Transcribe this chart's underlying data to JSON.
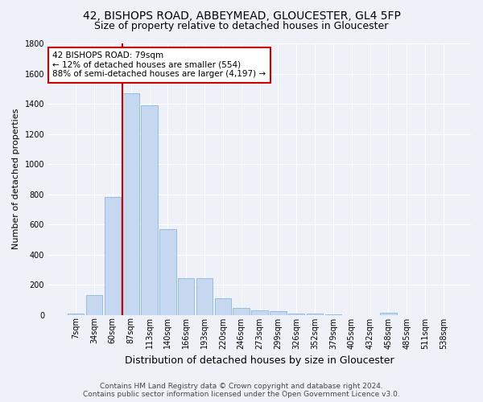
{
  "title": "42, BISHOPS ROAD, ABBEYMEAD, GLOUCESTER, GL4 5FP",
  "subtitle": "Size of property relative to detached houses in Gloucester",
  "xlabel": "Distribution of detached houses by size in Gloucester",
  "ylabel": "Number of detached properties",
  "categories": [
    "7sqm",
    "34sqm",
    "60sqm",
    "87sqm",
    "113sqm",
    "140sqm",
    "166sqm",
    "193sqm",
    "220sqm",
    "246sqm",
    "273sqm",
    "299sqm",
    "326sqm",
    "352sqm",
    "379sqm",
    "405sqm",
    "432sqm",
    "458sqm",
    "485sqm",
    "511sqm",
    "538sqm"
  ],
  "values": [
    10,
    130,
    780,
    1470,
    1390,
    570,
    245,
    245,
    110,
    45,
    30,
    25,
    10,
    10,
    5,
    0,
    0,
    15,
    0,
    0,
    0
  ],
  "bar_color": "#c5d8f0",
  "bar_edge_color": "#7aaed6",
  "vline_index": 3,
  "vline_color": "#cc0000",
  "annotation_title": "42 BISHOPS ROAD: 79sqm",
  "annotation_line1": "← 12% of detached houses are smaller (554)",
  "annotation_line2": "88% of semi-detached houses are larger (4,197) →",
  "annotation_box_color": "#ffffff",
  "annotation_box_edge_color": "#cc0000",
  "ylim": [
    0,
    1800
  ],
  "yticks": [
    0,
    200,
    400,
    600,
    800,
    1000,
    1200,
    1400,
    1600,
    1800
  ],
  "footer1": "Contains HM Land Registry data © Crown copyright and database right 2024.",
  "footer2": "Contains public sector information licensed under the Open Government Licence v3.0.",
  "background_color": "#eef2f8",
  "grid_color": "#ffffff",
  "title_fontsize": 10,
  "subtitle_fontsize": 9,
  "ylabel_fontsize": 8,
  "xlabel_fontsize": 9,
  "tick_fontsize": 7,
  "annotation_fontsize": 7.5,
  "footer_fontsize": 6.5
}
